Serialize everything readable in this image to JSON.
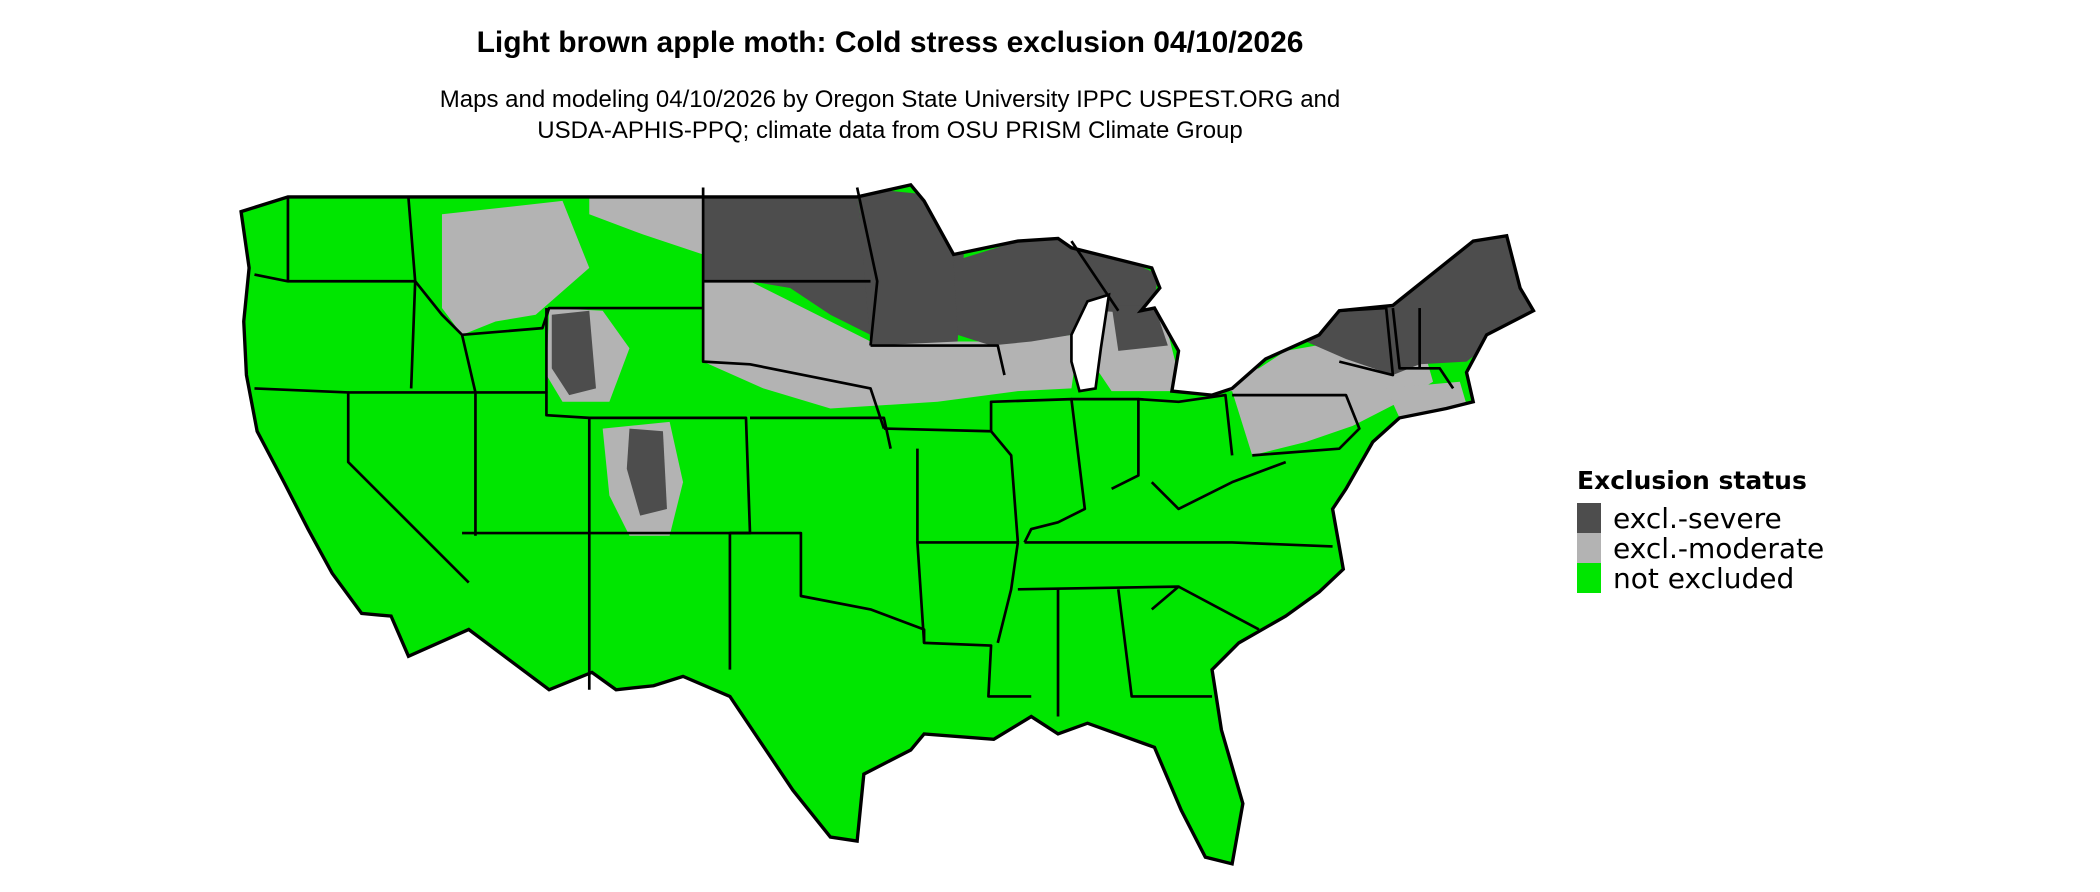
{
  "title": "Light brown apple moth: Cold stress exclusion 04/10/2026",
  "subtitle_lines": [
    "Maps and modeling 04/10/2026 by Oregon State University IPPC USPEST.ORG and",
    "USDA-APHIS-PPQ; climate data from OSU PRISM Climate Group"
  ],
  "legend": {
    "title": "Exclusion status",
    "items": [
      {
        "label": "excl.-severe",
        "color": "#4d4d4d"
      },
      {
        "label": "excl.-moderate",
        "color": "#b3b3b3"
      },
      {
        "label": "not excluded",
        "color": "#00e600"
      }
    ]
  },
  "map": {
    "region": "Contiguous United States",
    "boundaries": "state borders in black"
  }
}
